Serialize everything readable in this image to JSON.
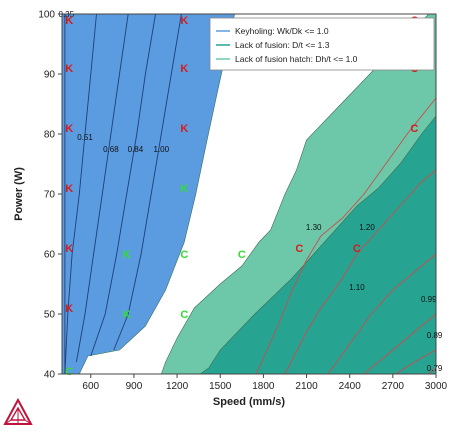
{
  "chart_data": {
    "type": "contour",
    "xlabel": "Speed (mm/s)",
    "ylabel": "Power (W)",
    "xlim": [
      400,
      3000
    ],
    "ylim": [
      40,
      100
    ],
    "x_ticks": [
      600,
      900,
      1200,
      1500,
      1800,
      2100,
      2400,
      2700,
      3000
    ],
    "y_ticks": [
      40,
      50,
      60,
      70,
      80,
      90,
      100
    ],
    "legend": {
      "position": "top-right",
      "entries": [
        {
          "label": "Keyholing: Wk/Dk <= 1.0",
          "color": "#5b9be0"
        },
        {
          "label": "Lack of fusion: D/t <= 1.3",
          "color": "#27a392"
        },
        {
          "label": "Lack of fusion hatch: Dh/t <= 1.0",
          "color": "#6cc8a8"
        }
      ]
    },
    "regions": [
      {
        "name": "Keyholing",
        "color": "#5b9be0",
        "boundary": [
          [
            400,
            40
          ],
          [
            400,
            100
          ],
          [
            1600,
            100
          ],
          [
            1480,
            87
          ],
          [
            1400,
            78
          ],
          [
            1330,
            70
          ],
          [
            1250,
            62
          ],
          [
            1120,
            54
          ],
          [
            980,
            48
          ],
          [
            800,
            44
          ],
          [
            580,
            43
          ],
          [
            520,
            40
          ]
        ]
      },
      {
        "name": "Lack of fusion hatch",
        "color": "#6cc8a8",
        "boundary": [
          [
            1090,
            40
          ],
          [
            3000,
            40
          ],
          [
            3000,
            100
          ],
          [
            2950,
            100
          ],
          [
            2700,
            94
          ],
          [
            2500,
            89
          ],
          [
            2300,
            84
          ],
          [
            2100,
            79
          ],
          [
            2030,
            74
          ],
          [
            1950,
            70
          ],
          [
            1850,
            64
          ],
          [
            1770,
            62
          ],
          [
            1650,
            58
          ],
          [
            1500,
            55
          ],
          [
            1320,
            51
          ],
          [
            1200,
            46
          ],
          [
            1120,
            42
          ]
        ]
      },
      {
        "name": "Lack of fusion",
        "color": "#27a392",
        "boundary": [
          [
            1360,
            40
          ],
          [
            3000,
            40
          ],
          [
            3000,
            83
          ],
          [
            2900,
            80
          ],
          [
            2750,
            75
          ],
          [
            2600,
            71
          ],
          [
            2450,
            68
          ],
          [
            2300,
            64
          ],
          [
            2150,
            60
          ],
          [
            2000,
            56
          ],
          [
            1870,
            53
          ],
          [
            1740,
            50
          ],
          [
            1620,
            47
          ],
          [
            1500,
            44
          ],
          [
            1420,
            41
          ]
        ]
      }
    ],
    "keyhole_contours": [
      {
        "label": "0.35",
        "points": [
          [
            420,
            100
          ],
          [
            420,
            40
          ]
        ],
        "label_at": [
          430,
          99.5
        ]
      },
      {
        "label": "0.51",
        "points": [
          [
            640,
            100
          ],
          [
            600,
            90
          ],
          [
            560,
            80
          ],
          [
            520,
            70
          ],
          [
            470,
            60
          ],
          [
            440,
            50
          ],
          [
            420,
            40
          ]
        ],
        "label_at": [
          560,
          79
        ]
      },
      {
        "label": "0.68",
        "points": [
          [
            860,
            100
          ],
          [
            800,
            90
          ],
          [
            740,
            80
          ],
          [
            680,
            70
          ],
          [
            620,
            60
          ],
          [
            560,
            50
          ],
          [
            500,
            42
          ]
        ],
        "label_at": [
          740,
          77
        ]
      },
      {
        "label": "0.84",
        "points": [
          [
            1050,
            100
          ],
          [
            980,
            90
          ],
          [
            920,
            80
          ],
          [
            850,
            70
          ],
          [
            780,
            60
          ],
          [
            700,
            50
          ],
          [
            600,
            43
          ]
        ],
        "label_at": [
          910,
          77
        ]
      },
      {
        "label": "1.00",
        "points": [
          [
            1230,
            100
          ],
          [
            1160,
            90
          ],
          [
            1090,
            80
          ],
          [
            1020,
            70
          ],
          [
            950,
            60
          ],
          [
            860,
            50
          ],
          [
            760,
            44
          ]
        ],
        "label_at": [
          1090,
          77
        ]
      }
    ],
    "fusion_contours": [
      {
        "label": "1.30",
        "points": [
          [
            1750,
            40
          ],
          [
            1900,
            48
          ],
          [
            2000,
            54
          ],
          [
            2100,
            59
          ],
          [
            2200,
            63
          ],
          [
            2350,
            66
          ],
          [
            2500,
            70
          ],
          [
            2650,
            75
          ],
          [
            2800,
            80
          ],
          [
            3000,
            86
          ]
        ],
        "label_at": [
          2150,
          64
        ]
      },
      {
        "label": "1.20",
        "points": [
          [
            1950,
            40
          ],
          [
            2100,
            47
          ],
          [
            2200,
            51
          ],
          [
            2350,
            56
          ],
          [
            2450,
            60
          ],
          [
            2600,
            64
          ],
          [
            2750,
            68
          ],
          [
            2900,
            72
          ],
          [
            3000,
            74
          ]
        ],
        "label_at": [
          2520,
          64
        ]
      },
      {
        "label": "1.10",
        "points": [
          [
            2250,
            40
          ],
          [
            2400,
            45
          ],
          [
            2550,
            50
          ],
          [
            2700,
            54
          ],
          [
            2850,
            57
          ],
          [
            3000,
            60
          ]
        ],
        "label_at": [
          2450,
          54
        ]
      },
      {
        "label": "0.99",
        "points": [
          [
            2500,
            40
          ],
          [
            2650,
            43
          ],
          [
            2800,
            46
          ],
          [
            2950,
            49
          ],
          [
            3000,
            50
          ]
        ],
        "label_at": [
          2950,
          52
        ]
      },
      {
        "label": "0.89",
        "points": [
          [
            2720,
            40
          ],
          [
            2850,
            42
          ],
          [
            3000,
            44
          ]
        ],
        "label_at": [
          2990,
          46
        ]
      },
      {
        "label": "0.79",
        "points": [
          [
            2950,
            40
          ],
          [
            3000,
            41
          ]
        ],
        "label_at": [
          2990,
          40.5
        ]
      }
    ],
    "markers": [
      {
        "text": "C",
        "x": 450,
        "y": 40.5,
        "color": "#33dd33"
      },
      {
        "text": "K",
        "x": 450,
        "y": 51,
        "color": "#d81b1b"
      },
      {
        "text": "K",
        "x": 450,
        "y": 61,
        "color": "#d81b1b"
      },
      {
        "text": "K",
        "x": 450,
        "y": 71,
        "color": "#d81b1b"
      },
      {
        "text": "K",
        "x": 450,
        "y": 81,
        "color": "#d81b1b"
      },
      {
        "text": "K",
        "x": 450,
        "y": 91,
        "color": "#d81b1b"
      },
      {
        "text": "K",
        "x": 450,
        "y": 99,
        "color": "#d81b1b"
      },
      {
        "text": "K",
        "x": 850,
        "y": 50,
        "color": "#33dd33"
      },
      {
        "text": "K",
        "x": 850,
        "y": 60,
        "color": "#33dd33"
      },
      {
        "text": "C",
        "x": 1250,
        "y": 50,
        "color": "#33dd33"
      },
      {
        "text": "C",
        "x": 1250,
        "y": 60,
        "color": "#33dd33"
      },
      {
        "text": "K",
        "x": 1250,
        "y": 71,
        "color": "#33dd33"
      },
      {
        "text": "K",
        "x": 1250,
        "y": 81,
        "color": "#d81b1b"
      },
      {
        "text": "K",
        "x": 1250,
        "y": 91,
        "color": "#d81b1b"
      },
      {
        "text": "K",
        "x": 1250,
        "y": 99,
        "color": "#d81b1b"
      },
      {
        "text": "C",
        "x": 1650,
        "y": 60,
        "color": "#33dd33"
      },
      {
        "text": "C",
        "x": 2050,
        "y": 61,
        "color": "#d81b1b"
      },
      {
        "text": "C",
        "x": 2450,
        "y": 61,
        "color": "#d81b1b"
      },
      {
        "text": "C",
        "x": 2850,
        "y": 81,
        "color": "#d81b1b"
      },
      {
        "text": "C",
        "x": 2850,
        "y": 91,
        "color": "#d81b1b"
      },
      {
        "text": "C",
        "x": 2850,
        "y": 99,
        "color": "#d81b1b"
      }
    ]
  },
  "logo": {
    "name": "thermo-calc-logo-icon",
    "color": "#c0143c"
  }
}
